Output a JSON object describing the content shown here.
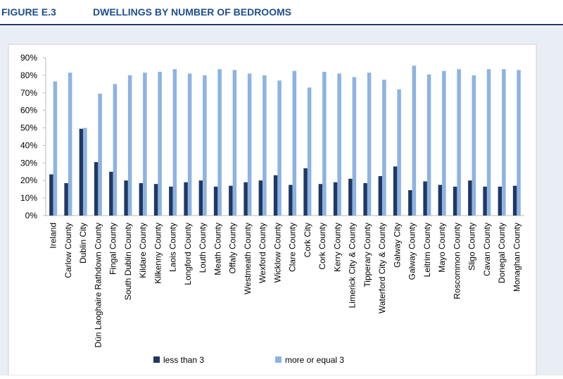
{
  "header": {
    "figure": "FIGURE E.3",
    "title": "DWELLINGS BY NUMBER OF BEDROOMS"
  },
  "chart_data": {
    "type": "bar",
    "categories": [
      "Ireland",
      "Carlow County",
      "Dublin City",
      "Dún Laoghaire Rathdown County",
      "Fingal County",
      "South Dublin County",
      "Kildare County",
      "Kilkenny County",
      "Laois County",
      "Longford County",
      "Louth County",
      "Meath County",
      "Offaly County",
      "Westmeath County",
      "Wexford County",
      "Wicklow County",
      "Clare County",
      "Cork City",
      "Cork County",
      "Kerry County",
      "Limerick City & County",
      "Tipperary County",
      "Waterford City & County",
      "Galway City",
      "Galway County",
      "Leitrim County",
      "Mayo  County",
      "Roscommon County",
      "Sligo County",
      "Cavan County",
      "Donegal County",
      "Monaghan County"
    ],
    "series": [
      {
        "name": "less than 3",
        "color": "#1f3864",
        "values": [
          23.5,
          18.5,
          49.5,
          30.5,
          25,
          20,
          18.5,
          18,
          16.5,
          19,
          20,
          16.5,
          17,
          19,
          20,
          23,
          17.5,
          27,
          18,
          19,
          21,
          18.5,
          22.5,
          28,
          14.5,
          19.5,
          17.5,
          16.5,
          20,
          16.5,
          16.5,
          17
        ]
      },
      {
        "name": "more or equal  3",
        "color": "#8db3e2",
        "values": [
          76.5,
          81.5,
          50,
          69.5,
          75,
          80,
          81.5,
          82,
          83.5,
          81,
          80,
          83.5,
          83,
          81,
          80,
          77,
          82.5,
          73,
          82,
          81,
          79,
          81.5,
          77.5,
          72,
          85.5,
          80.5,
          82.5,
          83.5,
          80,
          83.5,
          83.5,
          83
        ]
      }
    ],
    "ylim": [
      0,
      90
    ],
    "yticks": [
      {
        "value": 0,
        "label": "0%"
      },
      {
        "value": 10,
        "label": "10%"
      },
      {
        "value": 20,
        "label": "20%"
      },
      {
        "value": 30,
        "label": "30%"
      },
      {
        "value": 40,
        "label": "40%"
      },
      {
        "value": 50,
        "label": "50%"
      },
      {
        "value": 60,
        "label": "60%"
      },
      {
        "value": 70,
        "label": "70%"
      },
      {
        "value": 80,
        "label": "80%"
      },
      {
        "value": 90,
        "label": "90%"
      }
    ],
    "grid": false,
    "legend": "bottom"
  }
}
